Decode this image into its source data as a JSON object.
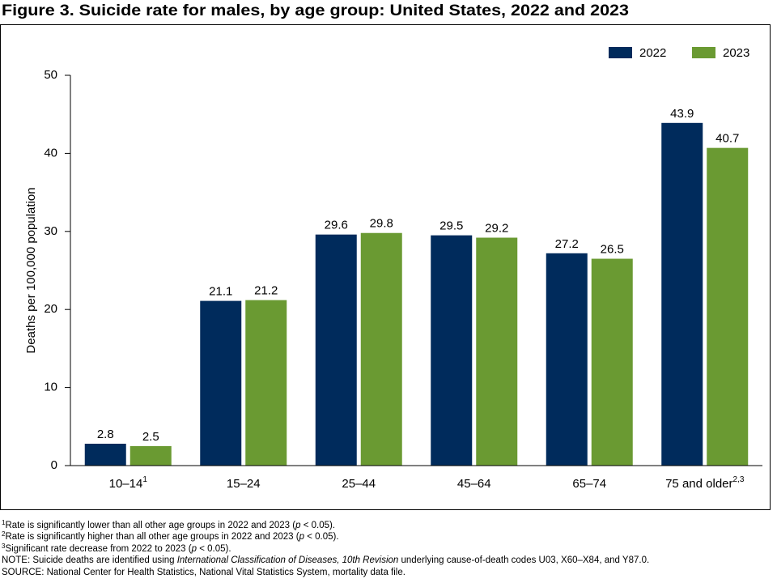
{
  "chart_data": {
    "type": "bar",
    "title": "Figure 3. Suicide rate for males, by age group: United States, 2022 and 2023",
    "y_label": "Deaths per 100,000 population",
    "categories": [
      "10–14",
      "15–24",
      "25–44",
      "45–64",
      "65–74",
      "75 and older"
    ],
    "category_notes": [
      "1",
      null,
      null,
      null,
      null,
      "2,3"
    ],
    "series": [
      {
        "name": "2022",
        "color": "#002b5c",
        "values": [
          2.8,
          21.1,
          29.6,
          29.5,
          27.2,
          43.9
        ]
      },
      {
        "name": "2023",
        "color": "#6a9a32",
        "values": [
          2.5,
          21.2,
          29.8,
          29.2,
          26.5,
          40.7
        ]
      }
    ],
    "ylim": [
      0,
      50
    ],
    "yticks": [
      0,
      10,
      20,
      30,
      40,
      50
    ],
    "grid": false,
    "legend": "top-right"
  },
  "footnotes": [
    {
      "mark": "1",
      "parts": [
        "Rate is significantly lower than all other age groups in 2022 and 2023 (",
        "p",
        " < 0.05)."
      ]
    },
    {
      "mark": "2",
      "parts": [
        "Rate is significantly higher than all other age groups in 2022 and 2023 (",
        "p",
        " < 0.05)."
      ]
    },
    {
      "mark": "3",
      "parts": [
        "Significant rate decrease from 2022 to 2023 (",
        "p",
        " < 0.05)."
      ]
    }
  ],
  "note": [
    "NOTE: Suicide deaths are identified using ",
    "International Classification of Diseases, 10th Revision",
    " underlying cause-of-death codes U03, X60–X84, and Y87.0."
  ],
  "source": "SOURCE: National Center for Health Statistics, National Vital Statistics System, mortality data file."
}
